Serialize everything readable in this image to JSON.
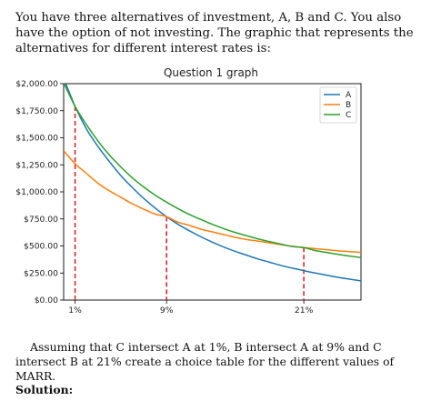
{
  "intro_text": "You have three alternatives of investment, A, B and C. You also have the option of not investing. The graphic that represents the alternatives for different interest rates is:",
  "question_text": "Assuming that C intersect A at 1%, B intersect A at 9% and C intersect B at 21% create a choice table for the different values of MARR.",
  "solution_label": "Solution:",
  "chart_data": {
    "type": "line",
    "title": "Question 1 graph",
    "xlabel": "",
    "ylabel": "",
    "xlim": [
      0,
      26
    ],
    "ylim": [
      0,
      2000
    ],
    "y_ticks": [
      {
        "value": 0,
        "label": "$0.00"
      },
      {
        "value": 250,
        "label": "$250.00"
      },
      {
        "value": 500,
        "label": "$500.00"
      },
      {
        "value": 750,
        "label": "$750.00"
      },
      {
        "value": 1000,
        "label": "$1,000.00"
      },
      {
        "value": 1250,
        "label": "$1,250.00"
      },
      {
        "value": 1500,
        "label": "$1,500.00"
      },
      {
        "value": 1750,
        "label": "$1,750.00"
      },
      {
        "value": 2000,
        "label": "$2,000.00"
      }
    ],
    "x_ticks": [
      {
        "value": 1,
        "label": "1%"
      },
      {
        "value": 9,
        "label": "9%"
      },
      {
        "value": 21,
        "label": "21%"
      }
    ],
    "grid": false,
    "legend_position": "top-right",
    "x": [
      0,
      1,
      2,
      3,
      4,
      5,
      6,
      7,
      8,
      9,
      10,
      11,
      12,
      13,
      14,
      15,
      16,
      17,
      18,
      19,
      20,
      21,
      22,
      23,
      24,
      25,
      26
    ],
    "series": [
      {
        "name": "A",
        "color": "#1f77b4",
        "values": [
          2050,
          1790,
          1580,
          1420,
          1280,
          1150,
          1040,
          940,
          850,
          770,
          700,
          640,
          585,
          535,
          490,
          450,
          415,
          380,
          350,
          320,
          295,
          272,
          250,
          230,
          210,
          193,
          178
        ]
      },
      {
        "name": "B",
        "color": "#ff7f0e",
        "values": [
          1380,
          1260,
          1170,
          1080,
          1010,
          950,
          890,
          840,
          795,
          770,
          720,
          690,
          655,
          630,
          605,
          580,
          560,
          545,
          528,
          512,
          497,
          485,
          475,
          465,
          455,
          448,
          440
        ]
      },
      {
        "name": "C",
        "color": "#2ca02c",
        "values": [
          2010,
          1790,
          1620,
          1470,
          1340,
          1230,
          1130,
          1045,
          970,
          905,
          845,
          790,
          745,
          700,
          660,
          625,
          595,
          565,
          540,
          517,
          495,
          485,
          458,
          440,
          422,
          407,
          393
        ]
      }
    ],
    "intersection_markers": [
      {
        "x": 1,
        "y": 1790,
        "color": "#d62728"
      },
      {
        "x": 9,
        "y": 770,
        "color": "#d62728"
      },
      {
        "x": 21,
        "y": 485,
        "color": "#d62728"
      }
    ]
  }
}
